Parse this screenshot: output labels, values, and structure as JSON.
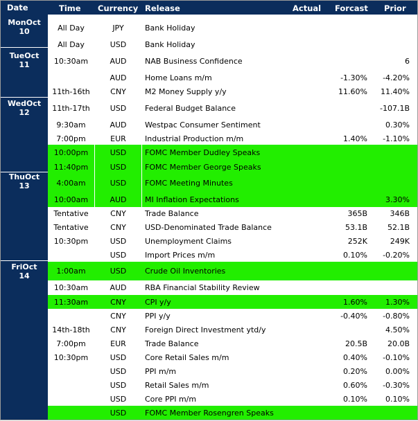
{
  "header": {
    "date": "Date",
    "time": "Time",
    "currency": "Currency",
    "release": "Release",
    "actual": "Actual",
    "forecast": "Forcast",
    "prior": "Prior"
  },
  "days": [
    {
      "line1": "MonOct",
      "line2": "10"
    },
    {
      "line1": "TueOct",
      "line2": "11"
    },
    {
      "line1": "WedOct",
      "line2": "12"
    },
    {
      "line1": "ThuOct",
      "line2": "13"
    },
    {
      "line1": "FriOct",
      "line2": "14"
    }
  ],
  "rows": [
    {
      "time": "All Day",
      "currency": "JPY",
      "release": "Bank Holiday",
      "forecast": "",
      "prior": "",
      "highlight": false
    },
    {
      "time": "All Day",
      "currency": "USD",
      "release": "Bank Holiday",
      "forecast": "",
      "prior": "",
      "highlight": false
    },
    {
      "time": "10:30am",
      "currency": "AUD",
      "release": "NAB Business Confidence",
      "forecast": "",
      "prior": "6",
      "highlight": false
    },
    {
      "time": "",
      "currency": "AUD",
      "release": "Home Loans m/m",
      "forecast": "-1.30%",
      "prior": "-4.20%",
      "highlight": false
    },
    {
      "time": "11th-16th",
      "currency": "CNY",
      "release": "M2 Money Supply y/y",
      "forecast": "11.60%",
      "prior": "11.40%",
      "highlight": false
    },
    {
      "time": "11th-17th",
      "currency": "USD",
      "release": "Federal Budget Balance",
      "forecast": "",
      "prior": "-107.1B",
      "highlight": false
    },
    {
      "time": "9:30am",
      "currency": "AUD",
      "release": "Westpac Consumer Sentiment",
      "forecast": "",
      "prior": "0.30%",
      "highlight": false
    },
    {
      "time": "7:00pm",
      "currency": "EUR",
      "release": "Industrial Production m/m",
      "forecast": "1.40%",
      "prior": "-1.10%",
      "highlight": false
    },
    {
      "time": "10:00pm",
      "currency": "USD",
      "release": "FOMC Member Dudley Speaks",
      "forecast": "",
      "prior": "",
      "highlight": true
    },
    {
      "time": "11:40pm",
      "currency": "USD",
      "release": "FOMC Member George Speaks",
      "forecast": "",
      "prior": "",
      "highlight": true
    },
    {
      "time": "4:00am",
      "currency": "USD",
      "release": "FOMC Meeting Minutes",
      "forecast": "",
      "prior": "",
      "highlight": true
    },
    {
      "time": "10:00am",
      "currency": "AUD",
      "release": "MI Inflation Expectations",
      "forecast": "",
      "prior": "3.30%",
      "highlight": true
    },
    {
      "time": "Tentative",
      "currency": "CNY",
      "release": "Trade Balance",
      "forecast": "365B",
      "prior": "346B",
      "highlight": false
    },
    {
      "time": "Tentative",
      "currency": "CNY",
      "release": "USD-Denominated Trade Balance",
      "forecast": "53.1B",
      "prior": "52.1B",
      "highlight": false
    },
    {
      "time": "10:30pm",
      "currency": "USD",
      "release": "Unemployment Claims",
      "forecast": "252K",
      "prior": "249K",
      "highlight": false
    },
    {
      "time": "",
      "currency": "USD",
      "release": "Import Prices m/m",
      "forecast": "0.10%",
      "prior": "-0.20%",
      "highlight": false
    },
    {
      "time": "1:00am",
      "currency": "USD",
      "release": "Crude Oil Inventories",
      "forecast": "",
      "prior": "",
      "highlight": true
    },
    {
      "time": "10:30am",
      "currency": "AUD",
      "release": "RBA Financial Stability Review",
      "forecast": "",
      "prior": "",
      "highlight": false
    },
    {
      "time": "11:30am",
      "currency": "CNY",
      "release": "CPI y/y",
      "forecast": "1.60%",
      "prior": "1.30%",
      "highlight": true
    },
    {
      "time": "",
      "currency": "CNY",
      "release": "PPI y/y",
      "forecast": "-0.40%",
      "prior": "-0.80%",
      "highlight": false
    },
    {
      "time": "14th-18th",
      "currency": "CNY",
      "release": "Foreign Direct Investment ytd/y",
      "forecast": "",
      "prior": "4.50%",
      "highlight": false
    },
    {
      "time": "7:00pm",
      "currency": "EUR",
      "release": "Trade Balance",
      "forecast": "20.5B",
      "prior": "20.0B",
      "highlight": false
    },
    {
      "time": "10:30pm",
      "currency": "USD",
      "release": "Core Retail Sales m/m",
      "forecast": "0.40%",
      "prior": "-0.10%",
      "highlight": false
    },
    {
      "time": "",
      "currency": "USD",
      "release": "PPI m/m",
      "forecast": "0.20%",
      "prior": "0.00%",
      "highlight": false
    },
    {
      "time": "",
      "currency": "USD",
      "release": "Retail Sales m/m",
      "forecast": "0.60%",
      "prior": "-0.30%",
      "highlight": false
    },
    {
      "time": "",
      "currency": "USD",
      "release": "Core PPI m/m",
      "forecast": "0.10%",
      "prior": "0.10%",
      "highlight": false
    },
    {
      "time": "",
      "currency": "USD",
      "release": "FOMC Member Rosengren Speaks",
      "forecast": "",
      "prior": "",
      "highlight": true
    }
  ],
  "colors": {
    "header_bg": "#0b2d5c",
    "highlight": "#22ee00"
  }
}
